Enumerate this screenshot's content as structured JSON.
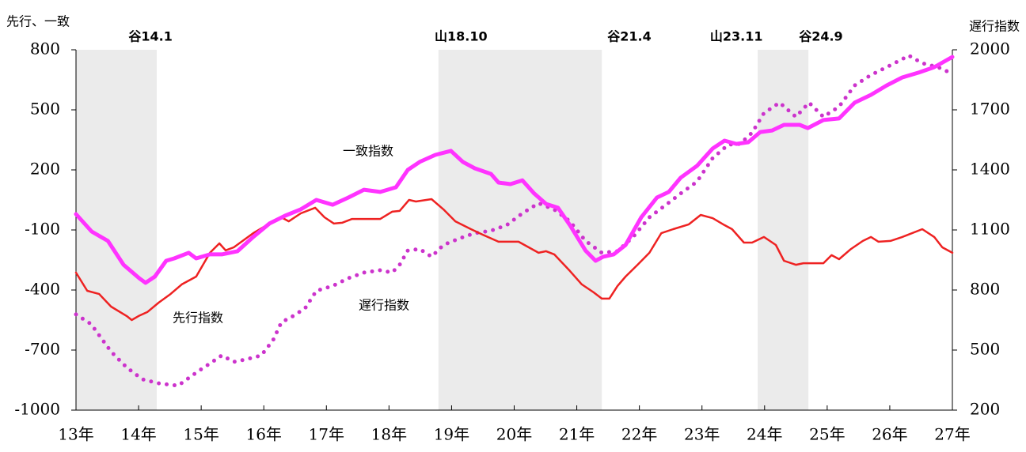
{
  "chart_data": {
    "type": "line",
    "y_label": "先行、一致",
    "y2_label": "遅行指数",
    "xlim": [
      13,
      27
    ],
    "xticks": [
      {
        "value": 13,
        "label": "13年"
      },
      {
        "value": 14,
        "label": "14年"
      },
      {
        "value": 15,
        "label": "15年"
      },
      {
        "value": 16,
        "label": "16年"
      },
      {
        "value": 17,
        "label": "17年"
      },
      {
        "value": 18,
        "label": "18年"
      },
      {
        "value": 19,
        "label": "19年"
      },
      {
        "value": 20,
        "label": "20年"
      },
      {
        "value": 21,
        "label": "21年"
      },
      {
        "value": 22,
        "label": "22年"
      },
      {
        "value": 23,
        "label": "23年"
      },
      {
        "value": 24,
        "label": "24年"
      },
      {
        "value": 25,
        "label": "25年"
      },
      {
        "value": 26,
        "label": "26年"
      },
      {
        "value": 27,
        "label": "27年"
      }
    ],
    "ylim": [
      -1000,
      800
    ],
    "yticks": [
      800,
      500,
      200,
      -100,
      -400,
      -700,
      -1000
    ],
    "y2lim": [
      200,
      2000
    ],
    "y2ticks": [
      2000,
      1700,
      1400,
      1100,
      800,
      500,
      200
    ],
    "shaded_regions": [
      [
        13.0,
        14.29
      ],
      [
        18.79,
        21.4
      ],
      [
        23.89,
        24.7
      ]
    ],
    "shade_color": "#ebebeb",
    "annotations": [
      {
        "text": "谷14.1",
        "x": 14.19
      },
      {
        "text": "山18.10",
        "x": 19.15
      },
      {
        "text": "谷21.4",
        "x": 21.84
      },
      {
        "text": "山23.11",
        "x": 23.55
      },
      {
        "text": "谷24.9",
        "x": 24.9
      }
    ],
    "series": [
      {
        "name": "一致指数",
        "color": "#ff33ff",
        "style": "solid",
        "x": [
          13.0,
          13.25,
          13.51,
          13.76,
          14.01,
          14.11,
          14.26,
          14.44,
          14.57,
          14.8,
          14.92,
          15.14,
          15.33,
          15.58,
          15.83,
          16.09,
          16.34,
          16.59,
          16.84,
          17.1,
          17.35,
          17.6,
          17.86,
          18.11,
          18.3,
          18.49,
          18.74,
          18.99,
          19.18,
          19.37,
          19.63,
          19.75,
          19.94,
          20.13,
          20.32,
          20.51,
          20.7,
          20.89,
          21.14,
          21.3,
          21.42,
          21.59,
          21.78,
          22.03,
          22.28,
          22.47,
          22.66,
          22.92,
          23.17,
          23.36,
          23.55,
          23.74,
          23.93,
          24.12,
          24.31,
          24.56,
          24.69,
          24.94,
          25.19,
          25.44,
          25.7,
          25.95,
          26.2,
          26.46,
          26.71,
          27.0
        ],
        "values": [
          -21,
          -108,
          -155,
          -274,
          -341,
          -364,
          -333,
          -254,
          -242,
          -214,
          -242,
          -222,
          -222,
          -206,
          -135,
          -68,
          -29,
          3,
          50,
          26,
          62,
          101,
          90,
          113,
          200,
          240,
          275,
          295,
          240,
          208,
          180,
          137,
          129,
          148,
          82,
          30,
          11,
          -76,
          -203,
          -254,
          -234,
          -222,
          -175,
          -37,
          62,
          90,
          161,
          220,
          307,
          346,
          330,
          338,
          389,
          397,
          425,
          425,
          409,
          449,
          457,
          536,
          575,
          622,
          662,
          686,
          713,
          764
        ]
      },
      {
        "name": "先行指数",
        "color": "#ee2222",
        "style": "solid",
        "x": [
          13.0,
          13.18,
          13.37,
          13.56,
          13.81,
          13.89,
          14.0,
          14.14,
          14.32,
          14.51,
          14.69,
          14.92,
          15.14,
          15.29,
          15.39,
          15.52,
          15.83,
          16.09,
          16.28,
          16.4,
          16.59,
          16.82,
          16.97,
          17.12,
          17.25,
          17.41,
          17.86,
          18.05,
          18.17,
          18.32,
          18.43,
          18.68,
          18.87,
          19.06,
          19.31,
          19.5,
          19.75,
          20.07,
          20.39,
          20.51,
          20.64,
          20.89,
          21.08,
          21.27,
          21.4,
          21.52,
          21.65,
          21.78,
          21.97,
          22.16,
          22.35,
          22.54,
          22.79,
          22.98,
          23.17,
          23.36,
          23.48,
          23.67,
          23.8,
          23.99,
          24.18,
          24.31,
          24.5,
          24.62,
          24.94,
          25.07,
          25.19,
          25.38,
          25.57,
          25.7,
          25.82,
          26.01,
          26.2,
          26.52,
          26.71,
          26.84,
          27.0
        ],
        "values": [
          -313,
          -404,
          -420,
          -483,
          -530,
          -550,
          -530,
          -510,
          -463,
          -420,
          -372,
          -333,
          -214,
          -167,
          -202,
          -187,
          -116,
          -68,
          -37,
          -57,
          -17,
          11,
          -37,
          -68,
          -64,
          -45,
          -45,
          -9,
          -5,
          50,
          42,
          54,
          3,
          -57,
          -96,
          -124,
          -159,
          -159,
          -214,
          -206,
          -222,
          -305,
          -372,
          -412,
          -443,
          -443,
          -380,
          -333,
          -274,
          -214,
          -116,
          -96,
          -72,
          -25,
          -41,
          -76,
          -96,
          -163,
          -163,
          -135,
          -175,
          -254,
          -274,
          -266,
          -266,
          -226,
          -246,
          -195,
          -155,
          -135,
          -159,
          -155,
          -135,
          -96,
          -135,
          -187,
          -214
        ]
      },
      {
        "name": "遅行指数",
        "color": "#cc33cc",
        "style": "dotted",
        "axis": "y2",
        "x": [
          13.0,
          13.24,
          13.56,
          13.81,
          14.06,
          14.32,
          14.63,
          14.95,
          15.14,
          15.33,
          15.52,
          15.71,
          15.96,
          16.15,
          16.28,
          16.47,
          16.66,
          16.84,
          17.1,
          17.35,
          17.6,
          17.86,
          18.05,
          18.17,
          18.3,
          18.49,
          18.68,
          18.87,
          19.12,
          19.37,
          19.63,
          19.88,
          20.13,
          20.39,
          20.64,
          20.89,
          21.14,
          21.4,
          21.65,
          21.9,
          22.16,
          22.41,
          22.66,
          22.92,
          23.17,
          23.42,
          23.61,
          23.8,
          23.99,
          24.24,
          24.5,
          24.71,
          24.94,
          25.19,
          25.44,
          25.7,
          25.95,
          26.2,
          26.3,
          26.52,
          26.77,
          26.96
        ],
        "values": [
          678,
          630,
          492,
          413,
          354,
          334,
          322,
          394,
          433,
          473,
          441,
          453,
          473,
          551,
          638,
          670,
          709,
          796,
          820,
          859,
          887,
          899,
          887,
          926,
          997,
          1005,
          966,
          1025,
          1057,
          1084,
          1096,
          1124,
          1183,
          1234,
          1202,
          1143,
          1045,
          986,
          994,
          1065,
          1163,
          1222,
          1282,
          1341,
          1459,
          1526,
          1530,
          1586,
          1684,
          1736,
          1665,
          1736,
          1665,
          1716,
          1822,
          1874,
          1913,
          1953,
          1972,
          1933,
          1913,
          1886
        ]
      }
    ]
  }
}
